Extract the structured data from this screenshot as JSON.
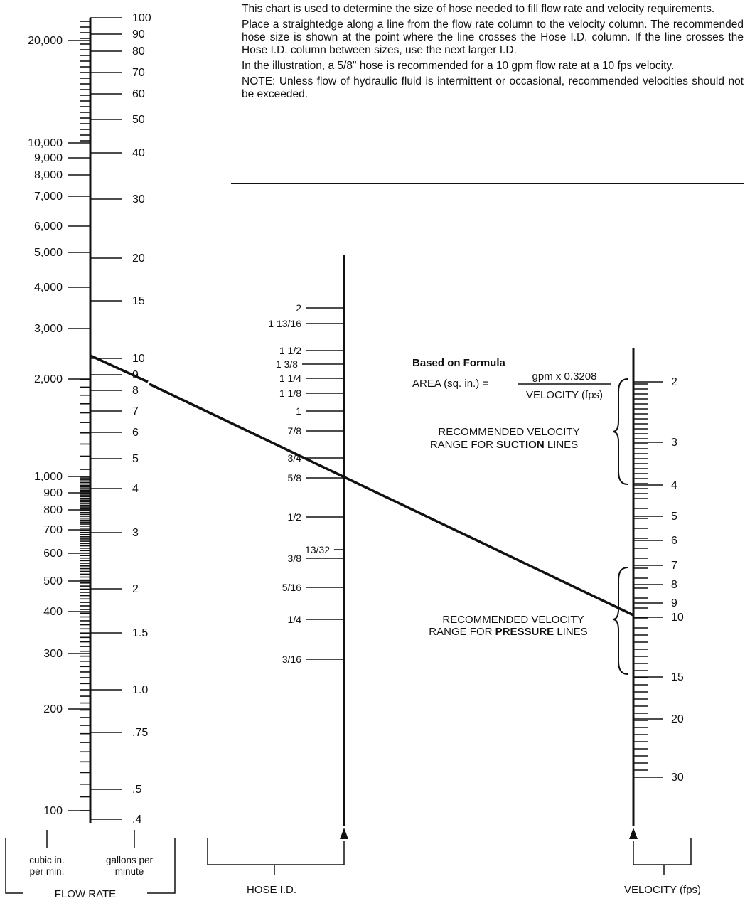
{
  "intro": {
    "p1": "This chart is used to determine the size of hose needed to fill flow rate and velocity requirements.",
    "p2": "Place a straightedge along a line from the flow rate column to the velocity column. The recommended hose size is shown at the point where the line crosses the Hose I.D. column. If the line crosses the Hose I.D. column between sizes, use the next larger I.D.",
    "p3": "In the illustration, a 5/8\" hose is recommended for a 10 gpm flow rate at a 10 fps velocity.",
    "p4": "NOTE: Unless flow of hydraulic fluid is intermittent or occasional, recommended velocities should not be exceeded."
  },
  "cim_labels": [
    "20,000",
    "10,000",
    "9,000",
    "8,000",
    "7,000",
    "6,000",
    "5,000",
    "4,000",
    "3,000",
    "2,000",
    "1,000",
    "900",
    "800",
    "700",
    "600",
    "500",
    "400",
    "300",
    "200",
    "100"
  ],
  "gpm_labels": [
    "100",
    "90",
    "80",
    "70",
    "60",
    "50",
    "40",
    "30",
    "20",
    "15",
    "10",
    "9",
    "8",
    "7",
    "6",
    "5",
    "4",
    "3",
    "2",
    "1.5",
    "1.0",
    ".75",
    ".5",
    ".4"
  ],
  "hose_labels": [
    "2",
    "1 13/16",
    "1 1/2",
    "1 3/8",
    "1 1/4",
    "1 1/8",
    "1",
    "7/8",
    "3/4",
    "5/8",
    "1/2",
    "13/32",
    "3/8",
    "5/16",
    "1/4",
    "3/16"
  ],
  "velocity_labels": [
    "2",
    "3",
    "4",
    "5",
    "6",
    "7",
    "8",
    "9",
    "10",
    "15",
    "20",
    "30"
  ],
  "formula": {
    "heading": "Based on Formula",
    "lhs": "AREA (sq. in.) =",
    "numerator": "gpm x 0.3208",
    "denominator": "VELOCITY (fps)"
  },
  "suction": {
    "line1": "RECOMMENDED VELOCITY",
    "prefix": "RANGE FOR ",
    "bold": "SUCTION",
    "suffix": " LINES"
  },
  "pressure": {
    "line1": "RECOMMENDED VELOCITY",
    "prefix": "RANGE FOR ",
    "bold": "PRESSURE",
    "suffix": " LINES"
  },
  "footer": {
    "cim": [
      "cubic in.",
      "per min."
    ],
    "gpm": [
      "gallons per",
      "minute"
    ],
    "flow_rate": "FLOW RATE",
    "hose_id": "HOSE I.D.",
    "velocity": "VELOCITY (fps)"
  },
  "example": {
    "flow_gpm": 10,
    "velocity_fps": 10,
    "hose_id": "5/8"
  }
}
